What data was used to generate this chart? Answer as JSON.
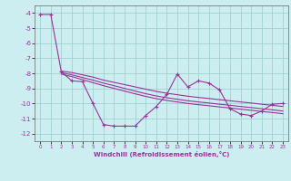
{
  "title": "",
  "xlabel": "Windchill (Refroidissement éolien,°C)",
  "xlim": [
    -0.5,
    23.5
  ],
  "ylim": [
    -12.5,
    -3.5
  ],
  "yticks": [
    -4,
    -5,
    -6,
    -7,
    -8,
    -9,
    -10,
    -11,
    -12
  ],
  "xticks": [
    0,
    1,
    2,
    3,
    4,
    5,
    6,
    7,
    8,
    9,
    10,
    11,
    12,
    13,
    14,
    15,
    16,
    17,
    18,
    19,
    20,
    21,
    22,
    23
  ],
  "bg_color": "#cceef0",
  "grid_color": "#99cccc",
  "line_color": "#993399",
  "main_y": [
    -4.1,
    -4.1,
    -7.9,
    -8.5,
    -8.55,
    -10.0,
    -11.4,
    -11.5,
    -11.5,
    -11.5,
    -10.8,
    -10.2,
    -9.4,
    -8.05,
    -8.9,
    -8.5,
    -8.65,
    -9.1,
    -10.35,
    -10.7,
    -10.8,
    -10.5,
    -10.05,
    -10.0
  ],
  "reg1_x_start": 2,
  "reg1_y": [
    -7.85,
    -7.95,
    -8.1,
    -8.25,
    -8.45,
    -8.6,
    -8.75,
    -8.9,
    -9.05,
    -9.2,
    -9.32,
    -9.42,
    -9.52,
    -9.6,
    -9.67,
    -9.75,
    -9.82,
    -9.9,
    -9.97,
    -10.05,
    -10.12,
    -10.2
  ],
  "reg2_x_start": 2,
  "reg2_y": [
    -7.95,
    -8.1,
    -8.28,
    -8.45,
    -8.65,
    -8.82,
    -9.0,
    -9.18,
    -9.35,
    -9.5,
    -9.62,
    -9.72,
    -9.82,
    -9.9,
    -9.97,
    -10.05,
    -10.12,
    -10.2,
    -10.27,
    -10.35,
    -10.42,
    -10.5
  ],
  "reg3_x_start": 2,
  "reg3_y": [
    -8.05,
    -8.22,
    -8.42,
    -8.62,
    -8.82,
    -9.0,
    -9.18,
    -9.36,
    -9.53,
    -9.68,
    -9.8,
    -9.9,
    -10.0,
    -10.08,
    -10.15,
    -10.23,
    -10.3,
    -10.38,
    -10.45,
    -10.53,
    -10.6,
    -10.68
  ]
}
